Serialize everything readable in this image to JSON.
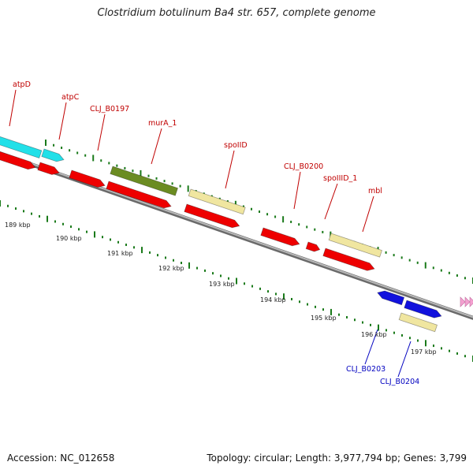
{
  "title": "Clostridium botulinum Ba4 str. 657, complete genome",
  "accession": "Accession: NC_012658",
  "topology": "Topology: circular; Length: 3,977,794 bp; Genes: 3,799",
  "colors": {
    "backbone": "#8c8c8c",
    "ticks": "#1a7a1a",
    "red": "#ee0000",
    "cyan": "#22e0e8",
    "olive": "#6b8c22",
    "khaki": "#f0e6a0",
    "blue": "#1111dd",
    "pink": "#f4a0d0",
    "label_red": "#c00000",
    "label_blue": "#0000c0"
  },
  "genes": [
    {
      "name": "atpD",
      "label_color": "red"
    },
    {
      "name": "atpC",
      "label_color": "red"
    },
    {
      "name": "CLJ_B0197",
      "label_color": "red"
    },
    {
      "name": "murA_1",
      "label_color": "red"
    },
    {
      "name": "spoIID",
      "label_color": "red"
    },
    {
      "name": "CLJ_B0200",
      "label_color": "red"
    },
    {
      "name": "spoIIID_1",
      "label_color": "red"
    },
    {
      "name": "mbl",
      "label_color": "red"
    },
    {
      "name": "CLJ_B0203",
      "label_color": "blue"
    },
    {
      "name": "CLJ_B0204",
      "label_color": "blue"
    }
  ],
  "kbp_labels": [
    "189 kbp",
    "190 kbp",
    "191 kbp",
    "192 kbp",
    "193 kbp",
    "194 kbp",
    "195 kbp",
    "196 kbp",
    "197 kbp"
  ]
}
